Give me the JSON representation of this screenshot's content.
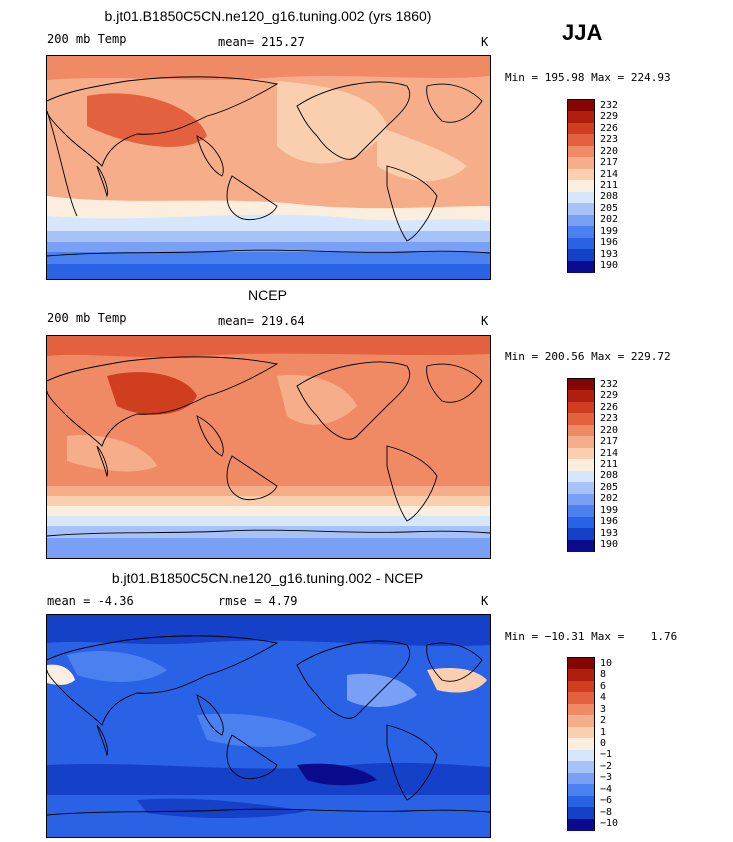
{
  "season": "JJA",
  "palettes": {
    "temp": [
      "#0a0a8c",
      "#1540c8",
      "#2a62e6",
      "#4b80f0",
      "#7aa0f5",
      "#a6c2f8",
      "#d6e6fb",
      "#fbeede",
      "#f9cfb0",
      "#f6ae8a",
      "#f08a64",
      "#e4613f",
      "#cf3e1e",
      "#b01e0e",
      "#850505"
    ],
    "diff": [
      "#0a0a8c",
      "#1540c8",
      "#2a62e6",
      "#4b80f0",
      "#7aa0f5",
      "#a6c2f8",
      "#d6e6fb",
      "#fbeede",
      "#f9cfb0",
      "#f6ae8a",
      "#f08a64",
      "#e4613f",
      "#cf3e1e",
      "#b01e0e",
      "#850505"
    ]
  },
  "panels": [
    {
      "title": "b.jt01.B1850C5CN.ne120_g16.tuning.002 (yrs 1860)",
      "left_label": "200 mb Temp",
      "stat_label": "mean= 215.27",
      "units": "K",
      "minmax": "Min = 195.98 Max = 224.93",
      "levels": [
        "232",
        "229",
        "226",
        "223",
        "220",
        "217",
        "214",
        "211",
        "208",
        "205",
        "202",
        "199",
        "196",
        "193",
        "190"
      ],
      "palette": "temp"
    },
    {
      "title": "NCEP",
      "left_label": "200 mb Temp",
      "stat_label": "mean= 219.64",
      "units": "K",
      "minmax": "Min = 200.56 Max = 229.72",
      "levels": [
        "232",
        "229",
        "226",
        "223",
        "220",
        "217",
        "214",
        "211",
        "208",
        "205",
        "202",
        "199",
        "196",
        "193",
        "190"
      ],
      "palette": "temp"
    },
    {
      "title": "b.jt01.B1850C5CN.ne120_g16.tuning.002 - NCEP",
      "left_label": "mean =   -4.36",
      "stat_label": "rmse =    4.79",
      "units": "K",
      "minmax": "Min = −10.31 Max =    1.76",
      "levels": [
        "10",
        "8",
        "6",
        "4",
        "3",
        "2",
        "1",
        "0",
        "−1",
        "−2",
        "−3",
        "−4",
        "−6",
        "−8",
        "−10"
      ],
      "palette": "diff"
    }
  ]
}
